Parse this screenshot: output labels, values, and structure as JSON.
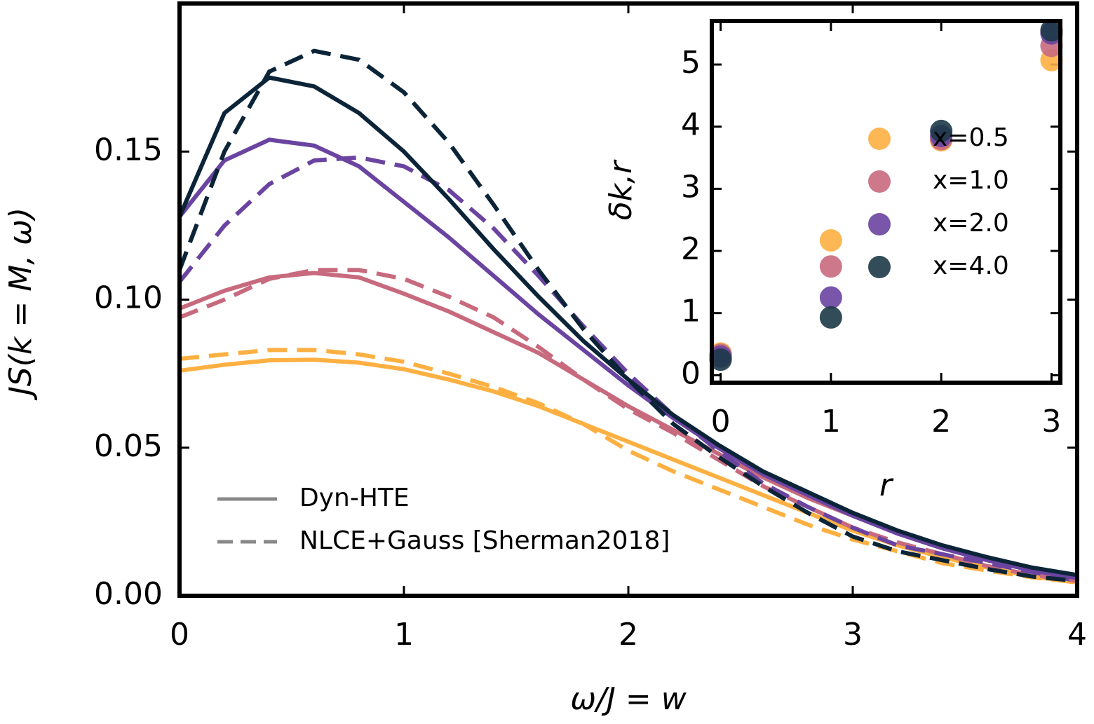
{
  "chart_data": [
    {
      "type": "line",
      "xlabel": "ω/J = w",
      "ylabel": "JS(k = M, ω)",
      "x": [
        0,
        0.2,
        0.4,
        0.6,
        0.8,
        1.0,
        1.2,
        1.4,
        1.6,
        1.8,
        2.0,
        2.2,
        2.4,
        2.6,
        2.8,
        3.0,
        3.2,
        3.4,
        3.6,
        3.8,
        4.0
      ],
      "xlim": [
        0,
        4
      ],
      "xticks": [
        0,
        1,
        2,
        3,
        4
      ],
      "ylim": [
        0,
        0.2
      ],
      "yticks": [
        {
          "value": 0,
          "label": "0.00"
        },
        {
          "value": 0.05,
          "label": "0.05"
        },
        {
          "value": 0.1,
          "label": "0.10"
        },
        {
          "value": 0.15,
          "label": "0.15"
        }
      ],
      "legend": [
        {
          "label": "Dyn-HTE",
          "dash": false
        },
        {
          "label": "NLCE+Gauss [Sherman2018]",
          "dash": true
        }
      ],
      "legend_color": "#888888",
      "series": [
        {
          "color": "#fdb042",
          "dash": false,
          "values": [
            0.076,
            0.078,
            0.0795,
            0.0797,
            0.0787,
            0.0765,
            0.073,
            0.069,
            0.064,
            0.058,
            0.052,
            0.046,
            0.04,
            0.034,
            0.028,
            0.022,
            0.017,
            0.013,
            0.0095,
            0.0065,
            0.0045
          ]
        },
        {
          "color": "#fdb042",
          "dash": true,
          "values": [
            0.08,
            0.0815,
            0.083,
            0.083,
            0.0815,
            0.079,
            0.075,
            0.0705,
            0.065,
            0.058,
            0.049,
            0.042,
            0.036,
            0.03,
            0.024,
            0.019,
            0.015,
            0.011,
            0.0085,
            0.0062,
            0.0045
          ]
        },
        {
          "color": "#c86a7e",
          "dash": false,
          "values": [
            0.097,
            0.103,
            0.1075,
            0.109,
            0.1075,
            0.102,
            0.096,
            0.089,
            0.082,
            0.073,
            0.064,
            0.056,
            0.048,
            0.04,
            0.033,
            0.027,
            0.021,
            0.016,
            0.012,
            0.0085,
            0.006
          ]
        },
        {
          "color": "#c86a7e",
          "dash": true,
          "values": [
            0.094,
            0.1,
            0.107,
            0.11,
            0.11,
            0.107,
            0.101,
            0.094,
            0.084,
            0.073,
            0.063,
            0.055,
            0.046,
            0.037,
            0.03,
            0.023,
            0.018,
            0.014,
            0.01,
            0.007,
            0.005
          ]
        },
        {
          "color": "#6a44a0",
          "dash": false,
          "values": [
            0.128,
            0.147,
            0.154,
            0.152,
            0.145,
            0.133,
            0.121,
            0.108,
            0.095,
            0.083,
            0.071,
            0.06,
            0.05,
            0.041,
            0.034,
            0.027,
            0.021,
            0.016,
            0.012,
            0.0085,
            0.006
          ]
        },
        {
          "color": "#6a44a0",
          "dash": true,
          "values": [
            0.106,
            0.125,
            0.139,
            0.147,
            0.148,
            0.145,
            0.137,
            0.124,
            0.108,
            0.091,
            0.075,
            0.061,
            0.049,
            0.038,
            0.03,
            0.023,
            0.017,
            0.014,
            0.011,
            0.008,
            0.005
          ]
        },
        {
          "color": "#0c2438",
          "dash": false,
          "values": [
            0.128,
            0.163,
            0.175,
            0.172,
            0.163,
            0.15,
            0.134,
            0.117,
            0.101,
            0.086,
            0.073,
            0.061,
            0.051,
            0.042,
            0.035,
            0.028,
            0.022,
            0.017,
            0.013,
            0.0095,
            0.007
          ]
        },
        {
          "color": "#0c2438",
          "dash": true,
          "values": [
            0.11,
            0.15,
            0.177,
            0.184,
            0.181,
            0.17,
            0.153,
            0.132,
            0.11,
            0.09,
            0.073,
            0.058,
            0.047,
            0.037,
            0.028,
            0.02,
            0.015,
            0.012,
            0.009,
            0.0065,
            0.005
          ]
        }
      ]
    },
    {
      "type": "scatter",
      "xlabel": "r",
      "ylabel": "δk,r",
      "x": [
        0,
        1,
        2,
        3
      ],
      "xlim": [
        -0.08,
        3.08
      ],
      "xticks": [
        0,
        1,
        2,
        3
      ],
      "ylim": [
        -0.12,
        5.7
      ],
      "yticks": [
        0,
        1,
        2,
        3,
        4,
        5
      ],
      "legend": "center right",
      "series": [
        {
          "name": "x=0.5",
          "color": "#fdb042",
          "values": [
            0.35,
            2.17,
            3.78,
            5.07
          ]
        },
        {
          "name": "x=1.0",
          "color": "#c86a7e",
          "values": [
            0.33,
            1.75,
            3.8,
            5.3
          ]
        },
        {
          "name": "x=2.0",
          "color": "#6a44a0",
          "values": [
            0.3,
            1.25,
            3.85,
            5.5
          ]
        },
        {
          "name": "x=4.0",
          "color": "#1c3848",
          "values": [
            0.25,
            0.93,
            3.93,
            5.55
          ]
        }
      ]
    }
  ]
}
